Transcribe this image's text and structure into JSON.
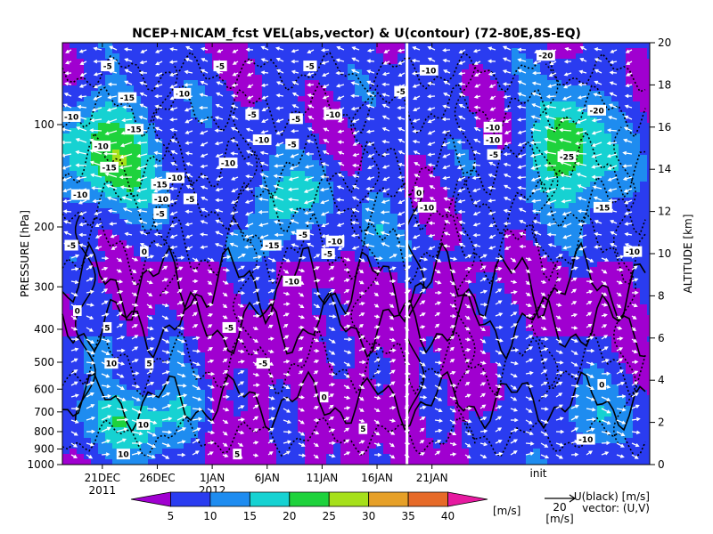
{
  "chart_data": {
    "type": "heatmap",
    "title": "NCEP+NICAM_fcst VEL(abs,vector) & U(contour)   (72-80E,8S-EQ)",
    "xaxis": {
      "ticks": [
        "21DEC",
        "26DEC",
        "1JAN",
        "6JAN",
        "11JAN",
        "16JAN",
        "21JAN"
      ],
      "year_labels": [
        "2011",
        "2012"
      ],
      "init_label": "init"
    },
    "yaxis_left": {
      "label": "PRESSURE [hPa]",
      "ticks": [
        100,
        200,
        300,
        400,
        500,
        600,
        700,
        800,
        900,
        1000
      ],
      "scale": "log"
    },
    "yaxis_right": {
      "label": "ALTITUDE [km]",
      "ticks": [
        0,
        2,
        4,
        6,
        8,
        10,
        12,
        14,
        16,
        18,
        20
      ]
    },
    "colorbar": {
      "levels": [
        5,
        10,
        15,
        20,
        25,
        30,
        35,
        40
      ],
      "colors": [
        "#a000d0",
        "#2a3cf0",
        "#1e8cf0",
        "#16d2d2",
        "#1ed23c",
        "#a6e01a",
        "#e6a028",
        "#e66a28",
        "#e61aa0"
      ],
      "unit": "[m/s]"
    },
    "vector_legend": {
      "magnitude": "20",
      "unit": "[m/s]"
    },
    "legend_text": [
      "U(black) [m/s]",
      "vector: (U,V)"
    ],
    "contour_labels": [
      {
        "text": "-5",
        "x": 0.23,
        "y": 18.9
      },
      {
        "text": "-5",
        "x": 11.5,
        "y": 18.9
      },
      {
        "text": "-5",
        "x": 20.5,
        "y": 18.9
      },
      {
        "text": "-5",
        "x": 7.5,
        "y": 17.6
      },
      {
        "text": "10",
        "x": 7.9,
        "y": 17.6
      },
      {
        "text": "-15",
        "x": 2.2,
        "y": 17.4
      },
      {
        "text": "-10",
        "x": -3.4,
        "y": 16.5
      },
      {
        "text": "-15",
        "x": 2.9,
        "y": 15.9
      },
      {
        "text": "-10",
        "x": -0.4,
        "y": 15.1
      },
      {
        "text": "-15",
        "x": 0.4,
        "y": 14.1
      },
      {
        "text": "-15",
        "x": 5.5,
        "y": 13.3
      },
      {
        "text": "-10",
        "x": 7.0,
        "y": 13.6
      },
      {
        "text": "-10",
        "x": 12.3,
        "y": 14.3
      },
      {
        "text": "-10",
        "x": -2.5,
        "y": 12.8
      },
      {
        "text": "-10",
        "x": 5.6,
        "y": 12.6
      },
      {
        "text": "-5",
        "x": 5.5,
        "y": 11.9
      },
      {
        "text": "-5",
        "x": 8.5,
        "y": 12.6
      },
      {
        "text": "-5",
        "x": 14.7,
        "y": 16.6
      },
      {
        "text": "-5",
        "x": 19.1,
        "y": 16.4
      },
      {
        "text": "-10",
        "x": 22.8,
        "y": 16.6
      },
      {
        "text": "-10",
        "x": 15.7,
        "y": 15.4
      },
      {
        "text": "-5",
        "x": 18.7,
        "y": 15.2
      },
      {
        "text": "-5",
        "x": 29.6,
        "y": 17.7
      },
      {
        "text": "-10",
        "x": 32.4,
        "y": 18.7
      },
      {
        "text": "-10",
        "x": 38.8,
        "y": 16.0
      },
      {
        "text": "-10",
        "x": 38.8,
        "y": 15.4
      },
      {
        "text": "-5",
        "x": 38.9,
        "y": 14.7
      },
      {
        "text": "-10",
        "x": 32.2,
        "y": 12.2
      },
      {
        "text": "0",
        "x": 31.4,
        "y": 12.9
      },
      {
        "text": "-5",
        "x": 19.8,
        "y": 10.9
      },
      {
        "text": "-10",
        "x": 23.0,
        "y": 10.6
      },
      {
        "text": "-15",
        "x": 16.7,
        "y": 10.4
      },
      {
        "text": "-5",
        "x": 22.3,
        "y": 10.0
      },
      {
        "text": "-10",
        "x": 18.7,
        "y": 8.7
      },
      {
        "text": "0",
        "x": 3.9,
        "y": 10.1
      },
      {
        "text": "-5",
        "x": -3.4,
        "y": 10.4
      },
      {
        "text": "0",
        "x": -2.8,
        "y": 7.3
      },
      {
        "text": "5",
        "x": 0.2,
        "y": 6.5
      },
      {
        "text": "-5",
        "x": 12.4,
        "y": 6.5
      },
      {
        "text": "-5",
        "x": 15.8,
        "y": 4.8
      },
      {
        "text": "10",
        "x": 0.6,
        "y": 4.8
      },
      {
        "text": "5",
        "x": 4.4,
        "y": 4.8
      },
      {
        "text": "0",
        "x": 21.9,
        "y": 3.2
      },
      {
        "text": "5",
        "x": 25.8,
        "y": 1.7
      },
      {
        "text": "10",
        "x": 3.8,
        "y": 1.9
      },
      {
        "text": "10",
        "x": 1.8,
        "y": 0.5
      },
      {
        "text": "5",
        "x": 13.2,
        "y": 0.5
      },
      {
        "text": "-20",
        "x": 44.1,
        "y": 19.4
      },
      {
        "text": "-20",
        "x": 49.2,
        "y": 16.8
      },
      {
        "text": "-25",
        "x": 46.2,
        "y": 14.6
      },
      {
        "text": "-15",
        "x": 49.8,
        "y": 12.2
      },
      {
        "text": "-10",
        "x": 52.8,
        "y": 10.1
      },
      {
        "text": "0",
        "x": 49.7,
        "y": 3.8
      },
      {
        "text": "-10",
        "x": 48.1,
        "y": 1.2
      }
    ]
  }
}
